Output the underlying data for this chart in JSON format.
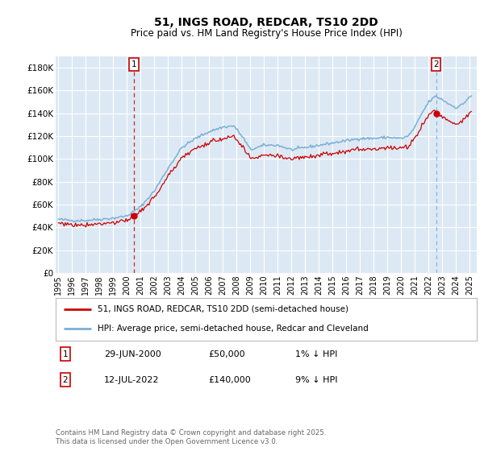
{
  "title": "51, INGS ROAD, REDCAR, TS10 2DD",
  "subtitle": "Price paid vs. HM Land Registry's House Price Index (HPI)",
  "ylabel_ticks": [
    "£0",
    "£20K",
    "£40K",
    "£60K",
    "£80K",
    "£100K",
    "£120K",
    "£140K",
    "£160K",
    "£180K"
  ],
  "ytick_values": [
    0,
    20000,
    40000,
    60000,
    80000,
    100000,
    120000,
    140000,
    160000,
    180000
  ],
  "ylim": [
    0,
    190000
  ],
  "xlim_start": 1994.8,
  "xlim_end": 2025.5,
  "sale1_x": 2000.49,
  "sale1_y": 50000,
  "sale1_label": "1",
  "sale2_x": 2022.53,
  "sale2_y": 140000,
  "sale2_label": "2",
  "bg_color": "#dce9f5",
  "fig_bg_color": "#ffffff",
  "red_line_color": "#cc0000",
  "blue_line_color": "#7bafd4",
  "grid_color": "#ffffff",
  "dashed_line1_color": "#cc0000",
  "dashed_line2_color": "#7bafd4",
  "legend1_text": "51, INGS ROAD, REDCAR, TS10 2DD (semi-detached house)",
  "legend2_text": "HPI: Average price, semi-detached house, Redcar and Cleveland",
  "sale1_date": "29-JUN-2000",
  "sale1_price": "£50,000",
  "sale1_pct": "1% ↓ HPI",
  "sale2_date": "12-JUL-2022",
  "sale2_price": "£140,000",
  "sale2_pct": "9% ↓ HPI",
  "footer": "Contains HM Land Registry data © Crown copyright and database right 2025.\nThis data is licensed under the Open Government Licence v3.0.",
  "hpi_anchors_x": [
    1995.0,
    1996.0,
    1997.0,
    1998.0,
    1999.0,
    2000.0,
    2001.0,
    2002.0,
    2003.0,
    2004.0,
    2005.0,
    2006.0,
    2007.0,
    2007.8,
    2008.5,
    2009.0,
    2010.0,
    2011.0,
    2012.0,
    2013.0,
    2014.0,
    2015.0,
    2016.0,
    2017.0,
    2018.0,
    2019.0,
    2020.0,
    2020.5,
    2021.0,
    2021.5,
    2022.0,
    2022.5,
    2023.0,
    2023.5,
    2024.0,
    2024.5,
    2025.0
  ],
  "hpi_anchors_y": [
    47000,
    46000,
    46000,
    47000,
    48000,
    50000,
    58000,
    72000,
    92000,
    110000,
    118000,
    124000,
    128000,
    129000,
    118000,
    108000,
    112000,
    112000,
    108000,
    110000,
    112000,
    114000,
    116000,
    118000,
    118000,
    119000,
    118000,
    120000,
    128000,
    140000,
    150000,
    155000,
    152000,
    148000,
    145000,
    148000,
    155000
  ]
}
